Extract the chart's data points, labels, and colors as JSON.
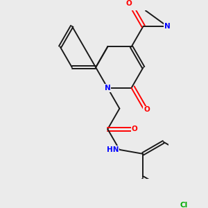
{
  "background_color": "#ebebeb",
  "bond_color": "#1a1a1a",
  "atom_colors": {
    "O": "#ff0000",
    "N": "#0000ff",
    "Cl": "#00aa00",
    "C": "#1a1a1a"
  },
  "figsize": [
    3.0,
    3.0
  ],
  "dpi": 100
}
